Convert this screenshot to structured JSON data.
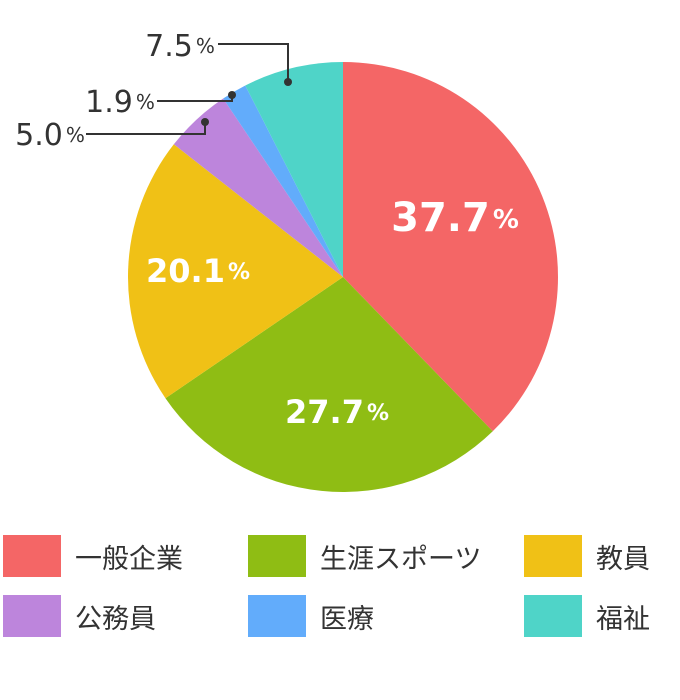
{
  "chart_data": {
    "type": "pie",
    "categories": [
      "一般企業",
      "生涯スポーツ",
      "教員",
      "公務員",
      "医療",
      "福祉"
    ],
    "values": [
      37.7,
      27.7,
      20.1,
      5.0,
      1.9,
      7.5
    ],
    "value_labels": [
      "37.7",
      "27.7",
      "20.1",
      "5.0",
      "1.9",
      "7.5"
    ],
    "unit_label": "%",
    "colors": [
      "#f46666",
      "#8fbd14",
      "#f0c116",
      "#bd85dc",
      "#62acfb",
      "#4fd4c8"
    ],
    "label_colors": [
      "#ffffff",
      "#ffffff",
      "#ffffff",
      "#333333",
      "#333333",
      "#333333"
    ],
    "start_angle_deg": 0,
    "direction": "clockwise",
    "legend_position": "bottom"
  }
}
